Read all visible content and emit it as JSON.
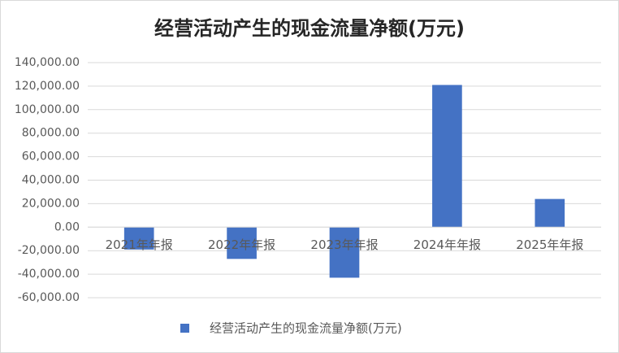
{
  "chart_data": {
    "type": "bar",
    "title": "经营活动产生的现金流量净额(万元)",
    "categories": [
      "2021年年报",
      "2022年年报",
      "2023年年报",
      "2024年年报",
      "2025年年报"
    ],
    "series": [
      {
        "name": "经营活动产生的现金流量净额(万元)",
        "color": "#4472c4",
        "values": [
          -19000,
          -27000,
          -43000,
          121000,
          24000
        ]
      }
    ],
    "ylim": [
      -60000,
      140000
    ],
    "yticks": [
      {
        "value": -60000,
        "label": "-60,000.00"
      },
      {
        "value": -40000,
        "label": "-40,000.00"
      },
      {
        "value": -20000,
        "label": "-20,000.00"
      },
      {
        "value": 0,
        "label": "0.00"
      },
      {
        "value": 20000,
        "label": "20,000.00"
      },
      {
        "value": 40000,
        "label": "40,000.00"
      },
      {
        "value": 60000,
        "label": "60,000.00"
      },
      {
        "value": 80000,
        "label": "80,000.00"
      },
      {
        "value": 100000,
        "label": "100,000.00"
      },
      {
        "value": 120000,
        "label": "120,000.00"
      },
      {
        "value": 140000,
        "label": "140,000.00"
      }
    ],
    "grid": true,
    "legend": "bottom"
  }
}
